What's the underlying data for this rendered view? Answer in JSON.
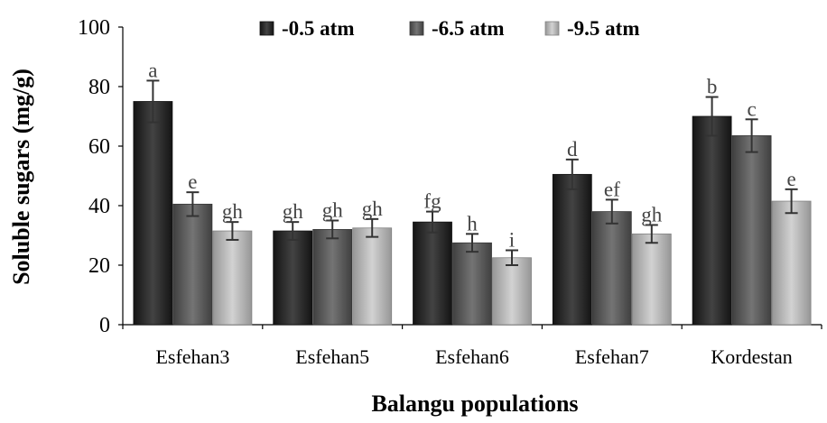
{
  "chart_data": {
    "type": "bar",
    "title": "",
    "xlabel": "Balangu populations",
    "ylabel": "Soluble sugars (mg/g)",
    "ylim": [
      0,
      100
    ],
    "yticks": [
      "0",
      "20",
      "40",
      "60",
      "80",
      "100"
    ],
    "categories": [
      "Esfehan3",
      "Esfehan5",
      "Esfehan6",
      "Esfehan7",
      "Kordestan"
    ],
    "series": [
      {
        "name": "-0.5 atm",
        "color": "#1a1a1a",
        "values": [
          75,
          31.5,
          34.5,
          50.5,
          70
        ],
        "errors": [
          7,
          3,
          3.5,
          5,
          6.5
        ],
        "labels": [
          "a",
          "gh",
          "fg",
          "d",
          "b"
        ]
      },
      {
        "name": "-6.5 atm",
        "color": "#555555",
        "values": [
          40.5,
          32,
          27.5,
          38,
          63.5
        ],
        "errors": [
          4,
          3,
          3,
          4,
          5.5
        ],
        "labels": [
          "e",
          "gh",
          "h",
          "ef",
          "c"
        ]
      },
      {
        "name": "-9.5 atm",
        "color": "#c8c8c8",
        "values": [
          31.5,
          32.5,
          22.5,
          30.5,
          41.5
        ],
        "errors": [
          3,
          3,
          2.5,
          3,
          4
        ],
        "labels": [
          "gh",
          "gh",
          "i",
          "gh",
          "e"
        ]
      }
    ],
    "legend_position": "top",
    "grid": false
  }
}
